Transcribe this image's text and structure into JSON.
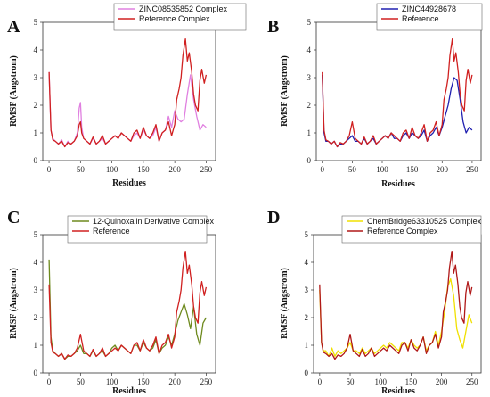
{
  "chart_data": [
    {
      "panel": "A",
      "type": "line",
      "xlabel": "Residues",
      "ylabel": "RMSF (Angstrom)",
      "xticks": [
        0,
        50,
        100,
        150,
        200,
        250
      ],
      "yticks": [
        0,
        1,
        2,
        3,
        4,
        5
      ],
      "xlim": [
        -10,
        265
      ],
      "ylim": [
        0,
        5
      ],
      "legend_position": "top",
      "series": [
        {
          "name": "ZINC08535852 Complex",
          "color": "#e080e0",
          "x": [
            0,
            3,
            6,
            10,
            15,
            20,
            25,
            30,
            35,
            40,
            45,
            48,
            50,
            52,
            55,
            60,
            65,
            70,
            75,
            80,
            85,
            90,
            95,
            100,
            105,
            110,
            115,
            120,
            125,
            130,
            135,
            140,
            145,
            150,
            155,
            160,
            165,
            170,
            175,
            180,
            185,
            190,
            195,
            200,
            205,
            210,
            215,
            220,
            225,
            230,
            235,
            240,
            245,
            250
          ],
          "values": [
            3.2,
            1.1,
            0.8,
            0.7,
            0.6,
            0.75,
            0.5,
            0.7,
            0.6,
            0.7,
            1.0,
            1.9,
            2.1,
            1.2,
            0.8,
            0.7,
            0.6,
            0.8,
            0.6,
            0.7,
            0.8,
            0.6,
            0.7,
            0.8,
            0.9,
            0.8,
            1.0,
            0.9,
            0.8,
            0.7,
            0.9,
            1.0,
            0.8,
            1.1,
            0.9,
            0.8,
            0.9,
            1.2,
            0.7,
            1.0,
            1.1,
            1.6,
            1.2,
            1.8,
            1.5,
            1.4,
            1.5,
            2.4,
            3.1,
            2.2,
            1.6,
            1.1,
            1.3,
            1.2
          ]
        },
        {
          "name": "Reference Complex",
          "color": "#d02020",
          "x": [
            0,
            3,
            6,
            10,
            15,
            20,
            25,
            30,
            35,
            40,
            45,
            48,
            50,
            52,
            55,
            60,
            65,
            70,
            75,
            80,
            85,
            90,
            95,
            100,
            105,
            110,
            115,
            120,
            125,
            130,
            135,
            140,
            145,
            150,
            155,
            160,
            165,
            170,
            175,
            180,
            185,
            190,
            195,
            200,
            203,
            207,
            210,
            213,
            217,
            220,
            223,
            227,
            230,
            233,
            237,
            240,
            243,
            247,
            250
          ],
          "values": [
            3.2,
            1.1,
            0.75,
            0.7,
            0.6,
            0.7,
            0.5,
            0.65,
            0.6,
            0.7,
            0.9,
            1.3,
            1.4,
            1.0,
            0.8,
            0.7,
            0.6,
            0.85,
            0.6,
            0.7,
            0.9,
            0.6,
            0.7,
            0.8,
            0.9,
            0.8,
            1.0,
            0.9,
            0.8,
            0.7,
            1.0,
            1.1,
            0.8,
            1.2,
            0.9,
            0.8,
            1.0,
            1.3,
            0.7,
            1.0,
            1.1,
            1.4,
            0.9,
            1.3,
            2.2,
            2.6,
            3.0,
            3.8,
            4.4,
            3.6,
            3.9,
            3.2,
            2.4,
            2.0,
            1.8,
            2.9,
            3.3,
            2.8,
            3.1
          ]
        }
      ]
    },
    {
      "panel": "B",
      "type": "line",
      "xlabel": "Residues",
      "ylabel": "RMSF (Angstrom)",
      "xticks": [
        0,
        50,
        100,
        150,
        200,
        250
      ],
      "yticks": [
        0,
        1,
        2,
        3,
        4,
        5
      ],
      "xlim": [
        -10,
        265
      ],
      "ylim": [
        0,
        5
      ],
      "legend_position": "top",
      "series": [
        {
          "name": "ZINC44928678",
          "color": "#2020b0",
          "x": [
            0,
            3,
            6,
            10,
            15,
            20,
            25,
            30,
            35,
            40,
            45,
            50,
            55,
            60,
            65,
            70,
            75,
            80,
            85,
            90,
            95,
            100,
            105,
            110,
            115,
            120,
            125,
            130,
            135,
            140,
            145,
            150,
            155,
            160,
            165,
            170,
            175,
            180,
            185,
            190,
            195,
            200,
            205,
            210,
            215,
            220,
            225,
            230,
            235,
            240,
            245,
            250
          ],
          "values": [
            3.1,
            1.0,
            0.7,
            0.7,
            0.6,
            0.7,
            0.5,
            0.6,
            0.6,
            0.7,
            0.8,
            0.9,
            0.7,
            0.7,
            0.6,
            0.8,
            0.6,
            0.7,
            0.8,
            0.6,
            0.7,
            0.8,
            0.9,
            0.8,
            1.0,
            0.8,
            0.8,
            0.7,
            0.9,
            1.0,
            0.8,
            1.0,
            0.9,
            0.8,
            0.9,
            1.1,
            0.7,
            0.9,
            1.0,
            1.2,
            0.9,
            1.2,
            1.6,
            2.0,
            2.6,
            3.0,
            2.9,
            2.2,
            1.4,
            1.0,
            1.2,
            1.1
          ]
        },
        {
          "name": "Reference",
          "color": "#d02020",
          "x": [
            0,
            3,
            6,
            10,
            15,
            20,
            25,
            30,
            35,
            40,
            45,
            50,
            55,
            60,
            65,
            70,
            75,
            80,
            85,
            90,
            95,
            100,
            105,
            110,
            115,
            120,
            125,
            130,
            135,
            140,
            145,
            150,
            155,
            160,
            165,
            170,
            175,
            180,
            185,
            190,
            195,
            200,
            203,
            207,
            210,
            213,
            217,
            220,
            223,
            227,
            230,
            233,
            237,
            240,
            243,
            247,
            250
          ],
          "values": [
            3.2,
            1.1,
            0.75,
            0.7,
            0.6,
            0.7,
            0.5,
            0.65,
            0.6,
            0.7,
            0.9,
            1.4,
            0.8,
            0.7,
            0.6,
            0.85,
            0.6,
            0.7,
            0.9,
            0.6,
            0.7,
            0.8,
            0.9,
            0.8,
            1.0,
            0.9,
            0.8,
            0.7,
            1.0,
            1.1,
            0.8,
            1.2,
            0.9,
            0.8,
            1.0,
            1.3,
            0.7,
            1.0,
            1.1,
            1.4,
            0.9,
            1.3,
            2.2,
            2.6,
            3.0,
            3.8,
            4.4,
            3.6,
            3.9,
            3.2,
            2.4,
            2.0,
            1.8,
            2.9,
            3.3,
            2.8,
            3.1
          ]
        }
      ]
    },
    {
      "panel": "C",
      "type": "line",
      "xlabel": "Residues",
      "ylabel": "RMSF (Angstrom)",
      "xticks": [
        0,
        50,
        100,
        150,
        200,
        250
      ],
      "yticks": [
        0,
        1,
        2,
        3,
        4,
        5
      ],
      "xlim": [
        -10,
        265
      ],
      "ylim": [
        0,
        5
      ],
      "legend_position": "top",
      "series": [
        {
          "name": "12-Quinoxalin Derivative Complex",
          "color": "#6e8a1e",
          "x": [
            0,
            3,
            6,
            10,
            15,
            20,
            25,
            30,
            35,
            40,
            45,
            50,
            55,
            60,
            65,
            70,
            75,
            80,
            85,
            90,
            95,
            100,
            105,
            110,
            115,
            120,
            125,
            130,
            135,
            140,
            145,
            150,
            155,
            160,
            165,
            170,
            175,
            180,
            185,
            190,
            195,
            200,
            205,
            210,
            215,
            220,
            225,
            230,
            235,
            240,
            245,
            250
          ],
          "values": [
            4.1,
            1.3,
            0.8,
            0.7,
            0.6,
            0.7,
            0.5,
            0.6,
            0.6,
            0.7,
            0.8,
            1.0,
            0.7,
            0.7,
            0.6,
            0.8,
            0.6,
            0.7,
            0.8,
            0.6,
            0.7,
            0.9,
            1.0,
            0.8,
            1.0,
            0.9,
            0.8,
            0.7,
            1.0,
            1.0,
            0.8,
            1.1,
            0.9,
            0.8,
            0.9,
            1.2,
            0.7,
            0.9,
            1.0,
            1.3,
            1.0,
            1.4,
            1.9,
            2.2,
            2.5,
            2.1,
            1.6,
            2.4,
            1.4,
            1.0,
            1.8,
            2.0
          ]
        },
        {
          "name": "Reference",
          "color": "#d02020",
          "x": [
            0,
            3,
            6,
            10,
            15,
            20,
            25,
            30,
            35,
            40,
            45,
            50,
            55,
            60,
            65,
            70,
            75,
            80,
            85,
            90,
            95,
            100,
            105,
            110,
            115,
            120,
            125,
            130,
            135,
            140,
            145,
            150,
            155,
            160,
            165,
            170,
            175,
            180,
            185,
            190,
            195,
            200,
            203,
            207,
            210,
            213,
            217,
            220,
            223,
            227,
            230,
            233,
            237,
            240,
            243,
            247,
            250
          ],
          "values": [
            3.2,
            1.1,
            0.75,
            0.7,
            0.6,
            0.7,
            0.5,
            0.65,
            0.6,
            0.7,
            0.9,
            1.4,
            0.8,
            0.7,
            0.6,
            0.85,
            0.6,
            0.7,
            0.9,
            0.6,
            0.7,
            0.8,
            0.9,
            0.8,
            1.0,
            0.9,
            0.8,
            0.7,
            1.0,
            1.1,
            0.8,
            1.2,
            0.9,
            0.8,
            1.0,
            1.3,
            0.7,
            1.0,
            1.1,
            1.4,
            0.9,
            1.3,
            2.2,
            2.6,
            3.0,
            3.8,
            4.4,
            3.6,
            3.9,
            3.2,
            2.4,
            2.0,
            1.8,
            2.9,
            3.3,
            2.8,
            3.1
          ]
        }
      ]
    },
    {
      "panel": "D",
      "type": "line",
      "xlabel": "Residues",
      "ylabel": "RMSF (Angstrom)",
      "xticks": [
        0,
        50,
        100,
        150,
        200,
        250
      ],
      "yticks": [
        0,
        1,
        2,
        3,
        4,
        5
      ],
      "xlim": [
        -10,
        265
      ],
      "ylim": [
        0,
        5
      ],
      "legend_position": "top",
      "series": [
        {
          "name": "ChemBridge63310525 Complex",
          "color": "#f0e000",
          "x": [
            0,
            3,
            6,
            10,
            15,
            20,
            25,
            30,
            35,
            40,
            45,
            50,
            55,
            60,
            65,
            70,
            75,
            80,
            85,
            90,
            95,
            100,
            105,
            110,
            115,
            120,
            125,
            130,
            135,
            140,
            145,
            150,
            155,
            160,
            165,
            170,
            175,
            180,
            185,
            190,
            195,
            200,
            205,
            210,
            215,
            220,
            225,
            230,
            235,
            240,
            245,
            250
          ],
          "values": [
            3.0,
            1.1,
            0.8,
            0.8,
            0.6,
            0.9,
            0.6,
            0.8,
            0.7,
            0.8,
            0.9,
            1.1,
            0.8,
            0.8,
            0.7,
            0.9,
            0.7,
            0.8,
            0.9,
            0.7,
            0.8,
            0.9,
            1.0,
            0.9,
            1.1,
            1.0,
            0.9,
            0.8,
            1.1,
            1.1,
            0.9,
            1.2,
            1.0,
            0.9,
            1.0,
            1.3,
            0.8,
            1.0,
            1.1,
            1.5,
            1.0,
            1.5,
            2.2,
            3.1,
            3.4,
            2.8,
            1.6,
            1.2,
            0.9,
            1.5,
            2.1,
            1.8
          ]
        },
        {
          "name": "Reference Complex",
          "color": "#b01818",
          "x": [
            0,
            3,
            6,
            10,
            15,
            20,
            25,
            30,
            35,
            40,
            45,
            50,
            55,
            60,
            65,
            70,
            75,
            80,
            85,
            90,
            95,
            100,
            105,
            110,
            115,
            120,
            125,
            130,
            135,
            140,
            145,
            150,
            155,
            160,
            165,
            170,
            175,
            180,
            185,
            190,
            195,
            200,
            203,
            207,
            210,
            213,
            217,
            220,
            223,
            227,
            230,
            233,
            237,
            240,
            243,
            247,
            250
          ],
          "values": [
            3.2,
            1.1,
            0.75,
            0.7,
            0.6,
            0.7,
            0.5,
            0.65,
            0.6,
            0.7,
            0.9,
            1.4,
            0.8,
            0.7,
            0.6,
            0.85,
            0.6,
            0.7,
            0.9,
            0.6,
            0.7,
            0.8,
            0.9,
            0.8,
            1.0,
            0.9,
            0.8,
            0.7,
            1.0,
            1.1,
            0.8,
            1.2,
            0.9,
            0.8,
            1.0,
            1.3,
            0.7,
            1.0,
            1.1,
            1.4,
            0.9,
            1.3,
            2.2,
            2.6,
            3.0,
            3.8,
            4.4,
            3.6,
            3.9,
            3.2,
            2.4,
            2.0,
            1.8,
            2.9,
            3.3,
            2.8,
            3.1
          ]
        }
      ]
    }
  ]
}
